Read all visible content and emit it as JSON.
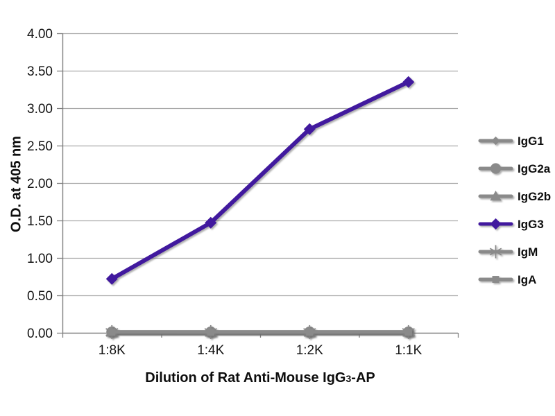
{
  "figure": {
    "background": "#ffffff",
    "x_axis_title": {
      "prefix": "Dilution of Rat Anti-Mouse IgG",
      "subscript": "3",
      "suffix": "-AP"
    }
  },
  "chart_data": {
    "type": "line",
    "title": "",
    "xlabel": "Dilution of Rat Anti-Mouse IgG3-AP",
    "ylabel": "O.D. at 405 nm",
    "categories": [
      "1:8K",
      "1:4K",
      "1:2K",
      "1:1K"
    ],
    "series": [
      {
        "name": "IgG1",
        "marker": "diamond",
        "color": "#8a8a8a",
        "values": [
          0.01,
          0.01,
          0.01,
          0.01
        ]
      },
      {
        "name": "IgG2a",
        "marker": "circle",
        "color": "#8a8a8a",
        "values": [
          0.01,
          0.01,
          0.01,
          0.01
        ]
      },
      {
        "name": "IgG2b",
        "marker": "triangle",
        "color": "#8a8a8a",
        "values": [
          0.01,
          0.01,
          0.01,
          0.01
        ]
      },
      {
        "name": "IgG3",
        "marker": "diamond",
        "color": "#41199e",
        "values": [
          0.72,
          1.47,
          2.72,
          3.35
        ]
      },
      {
        "name": "IgM",
        "marker": "asterisk",
        "color": "#8a8a8a",
        "values": [
          0.01,
          0.01,
          0.01,
          0.01
        ]
      },
      {
        "name": "IgA",
        "marker": "square",
        "color": "#8a8a8a",
        "values": [
          0.01,
          0.01,
          0.01,
          0.01
        ]
      }
    ],
    "ylim": [
      0,
      4
    ],
    "ytick_step": 0.5,
    "ytick_labels": [
      "0.00",
      "0.50",
      "1.00",
      "1.50",
      "2.00",
      "2.50",
      "3.00",
      "3.50",
      "4.00"
    ],
    "grid": true,
    "legend_position": "right",
    "colors": {
      "grid": "#a8a8a8",
      "axis": "#7f7f7f",
      "text": "#131313",
      "accent": "#41199e",
      "muted_series": "#8a8a8a"
    }
  }
}
